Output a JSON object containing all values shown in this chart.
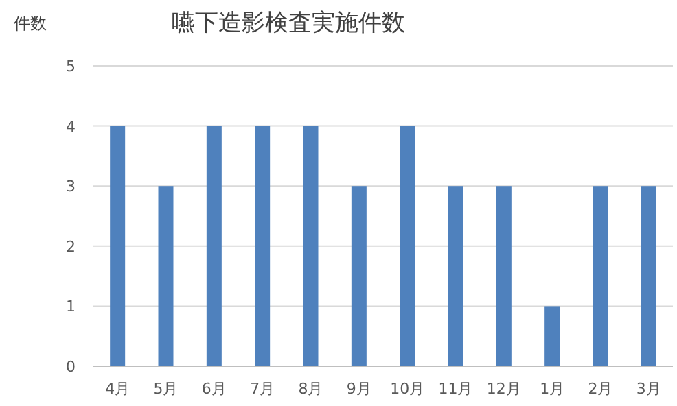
{
  "chart_data": {
    "type": "bar",
    "title": "嚥下造影検査実施件数",
    "ylabel": "件数",
    "categories": [
      "4月",
      "5月",
      "6月",
      "7月",
      "8月",
      "9月",
      "10月",
      "11月",
      "12月",
      "1月",
      "2月",
      "3月"
    ],
    "values": [
      4,
      3,
      4,
      4,
      4,
      3,
      4,
      3,
      3,
      1,
      3,
      3
    ],
    "color": "#4f81bd",
    "ylim": [
      0,
      5
    ],
    "yticks": [
      0,
      1,
      2,
      3,
      4,
      5
    ],
    "grid": "y"
  }
}
